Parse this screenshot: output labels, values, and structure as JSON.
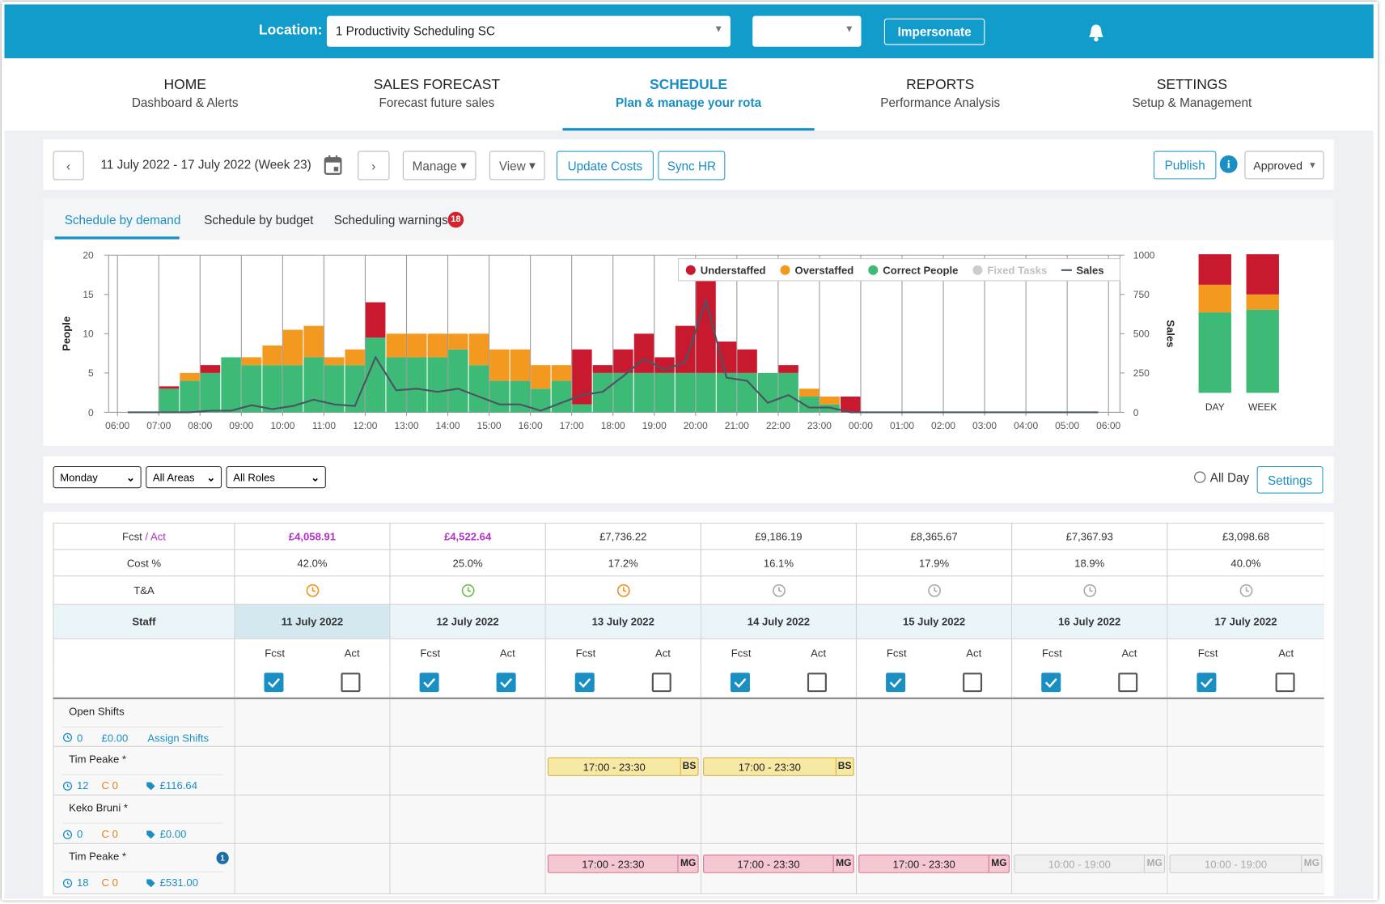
{
  "header": {
    "location_label": "Location:",
    "location": "1 Productivity Scheduling SC",
    "impersonate": "Impersonate"
  },
  "nav": [
    {
      "title": "HOME",
      "subtitle": "Dashboard & Alerts"
    },
    {
      "title": "SALES FORECAST",
      "subtitle": "Forecast future sales"
    },
    {
      "title": "SCHEDULE",
      "subtitle": "Plan & manage your rota",
      "active": true
    },
    {
      "title": "REPORTS",
      "subtitle": "Performance Analysis"
    },
    {
      "title": "SETTINGS",
      "subtitle": "Setup & Management"
    }
  ],
  "toolbar": {
    "date_range": "11 July 2022 - 17 July 2022 (Week 23)",
    "manage": "Manage",
    "view": "View",
    "update_costs": "Update Costs",
    "sync_hr": "Sync HR",
    "publish": "Publish",
    "status": "Approved"
  },
  "tabs": {
    "items": [
      "Schedule by demand",
      "Schedule by budget",
      "Scheduling warnings"
    ],
    "active": 0,
    "warnings_count": 18
  },
  "chart_data": [
    {
      "type": "bar",
      "ylabel": "People",
      "y2label": "Sales",
      "xticks": [
        "06:00",
        "07:00",
        "08:00",
        "09:00",
        "10:00",
        "11:00",
        "12:00",
        "13:00",
        "14:00",
        "15:00",
        "16:00",
        "17:00",
        "18:00",
        "19:00",
        "20:00",
        "21:00",
        "22:00",
        "23:00",
        "00:00",
        "01:00",
        "02:00",
        "03:00",
        "04:00",
        "05:00",
        "06:00"
      ],
      "ylim": [
        0,
        20
      ],
      "yticks": [
        0,
        5,
        10,
        15,
        20
      ],
      "y2lim": [
        0,
        1000
      ],
      "y2ticks": [
        0,
        250,
        500,
        750,
        1000
      ],
      "series": [
        {
          "name": "Understaffed",
          "type": "bar",
          "color": "#c8192f",
          "values": [
            0,
            0,
            0.3,
            0,
            1,
            0,
            0,
            0,
            0,
            0,
            0,
            0,
            4.5,
            0,
            0,
            0,
            0,
            0,
            0,
            0,
            0,
            0,
            7,
            1,
            3,
            5,
            2,
            6,
            12,
            4,
            3,
            0,
            1,
            0,
            0,
            2,
            0,
            0,
            0,
            0,
            0,
            0,
            0,
            0,
            0,
            0,
            0,
            0
          ]
        },
        {
          "name": "Overstaffed",
          "type": "bar",
          "color": "#f4991f",
          "values": [
            0,
            0,
            0,
            1,
            0,
            0,
            1,
            2.5,
            4.5,
            4,
            1,
            2,
            0,
            3,
            3,
            3,
            2,
            4,
            4,
            4,
            3,
            2,
            0,
            0,
            0,
            0,
            0,
            0,
            0,
            0,
            0,
            0,
            0,
            1,
            1,
            0,
            0,
            0,
            0,
            0,
            0,
            0,
            0,
            0,
            0,
            0,
            0,
            0
          ]
        },
        {
          "name": "Correct People",
          "type": "bar",
          "color": "#3dbb76",
          "values": [
            0,
            0,
            3,
            4,
            5,
            7,
            6,
            6,
            6,
            7,
            6,
            6,
            9.5,
            7,
            7,
            7,
            8,
            6,
            4,
            4,
            3,
            4,
            1,
            5,
            5,
            5,
            5,
            5,
            5,
            5,
            5,
            5,
            5,
            2,
            1,
            0,
            0,
            0,
            0,
            0,
            0,
            0,
            0,
            0,
            0,
            0,
            0,
            0
          ]
        },
        {
          "name": "Fixed Tasks",
          "type": "bar",
          "color": "#cccccc",
          "hidden": true
        },
        {
          "name": "Sales",
          "type": "line",
          "axis": "y2",
          "color": "#4b5563",
          "values": [
            0,
            0,
            0,
            0,
            10,
            10,
            45,
            20,
            40,
            80,
            50,
            40,
            350,
            140,
            150,
            130,
            150,
            100,
            50,
            50,
            10,
            60,
            110,
            130,
            230,
            340,
            270,
            320,
            710,
            220,
            200,
            60,
            110,
            30,
            30,
            0,
            0,
            0,
            0,
            0,
            0,
            0,
            0,
            0,
            0,
            0,
            0,
            0
          ]
        }
      ]
    },
    {
      "type": "bar",
      "categories": [
        "DAY",
        "WEEK"
      ],
      "ylim": [
        0,
        100
      ],
      "series": [
        {
          "color": "#c8192f",
          "values": [
            22,
            29
          ]
        },
        {
          "color": "#f4991f",
          "values": [
            20,
            11
          ]
        },
        {
          "color": "#3dbb76",
          "values": [
            58,
            60
          ]
        }
      ]
    }
  ],
  "filters": {
    "day": "Monday",
    "areas": "All Areas",
    "roles": "All Roles",
    "all_day": "All Day",
    "settings": "Settings"
  },
  "table": {
    "fcst_act": [
      "Fcst",
      "/ Act"
    ],
    "cost_label": "Cost %",
    "ta_label": "T&A",
    "staff_label": "Staff",
    "fcst": "Fcst",
    "act": "Act",
    "days": [
      {
        "date": "11 July 2022",
        "total": "£4,058.91",
        "actual": true,
        "cost": "42.0%",
        "ta": "#f0941f",
        "fcst_checked": true,
        "act_checked": false,
        "selected": true
      },
      {
        "date": "12 July 2022",
        "total": "£4,522.64",
        "actual": true,
        "cost": "25.0%",
        "ta": "#6cbf4a",
        "fcst_checked": true,
        "act_checked": true
      },
      {
        "date": "13 July 2022",
        "total": "£7,736.22",
        "cost": "17.2%",
        "ta": "#f0941f",
        "fcst_checked": true,
        "act_checked": false
      },
      {
        "date": "14 July 2022",
        "total": "£9,186.19",
        "cost": "16.1%",
        "ta": "#aaaaaa",
        "fcst_checked": true,
        "act_checked": false
      },
      {
        "date": "15 July 2022",
        "total": "£8,365.67",
        "cost": "17.9%",
        "ta": "#aaaaaa",
        "fcst_checked": true,
        "act_checked": false
      },
      {
        "date": "16 July 2022",
        "total": "£7,367.93",
        "cost": "18.9%",
        "ta": "#aaaaaa",
        "fcst_checked": true,
        "act_checked": false
      },
      {
        "date": "17 July 2022",
        "total": "£3,098.68",
        "cost": "40.0%",
        "ta": "#aaaaaa",
        "fcst_checked": true,
        "act_checked": false
      }
    ],
    "staff": [
      {
        "name": "Open Shifts",
        "hours": 0,
        "cost": "£0.00",
        "link": "Assign Shifts",
        "shifts": []
      },
      {
        "name": "Tim Peake *",
        "hours": 12,
        "contract": "C 0",
        "cost": "£116.64",
        "shifts": [
          null,
          null,
          {
            "time": "17:00 - 23:30",
            "role": "BS",
            "color": "#f7e8a4",
            "border": "#cfb54a",
            "text_color": "#222"
          },
          {
            "time": "17:00 - 23:30",
            "role": "BS",
            "color": "#f7e8a4",
            "border": "#cfb54a",
            "text_color": "#222"
          },
          null,
          null,
          null
        ]
      },
      {
        "name": "Keko Bruni *",
        "hours": 0,
        "contract": "C 0",
        "cost": "£0.00",
        "shifts": []
      },
      {
        "name": "Tim Peake *",
        "hours": 18,
        "contract": "C 0",
        "cost": "£531.00",
        "badge": 1,
        "shifts": [
          null,
          null,
          {
            "time": "17:00 - 23:30",
            "role": "MG",
            "color": "#f5c7d2",
            "border": "#d9758e",
            "text_color": "#222"
          },
          {
            "time": "17:00 - 23:30",
            "role": "MG",
            "color": "#f5c7d2",
            "border": "#d9758e",
            "text_color": "#222"
          },
          {
            "time": "17:00 - 23:30",
            "role": "MG",
            "color": "#f5c7d2",
            "border": "#d9758e",
            "text_color": "#222"
          },
          {
            "time": "10:00 - 19:00",
            "role": "MG",
            "color": "#f0f0f0",
            "border": "#cccccc",
            "text_color": "#aaaaaa"
          },
          {
            "time": "10:00 - 19:00",
            "role": "MG",
            "color": "#f0f0f0",
            "border": "#cccccc",
            "text_color": "#aaaaaa"
          }
        ]
      }
    ]
  }
}
